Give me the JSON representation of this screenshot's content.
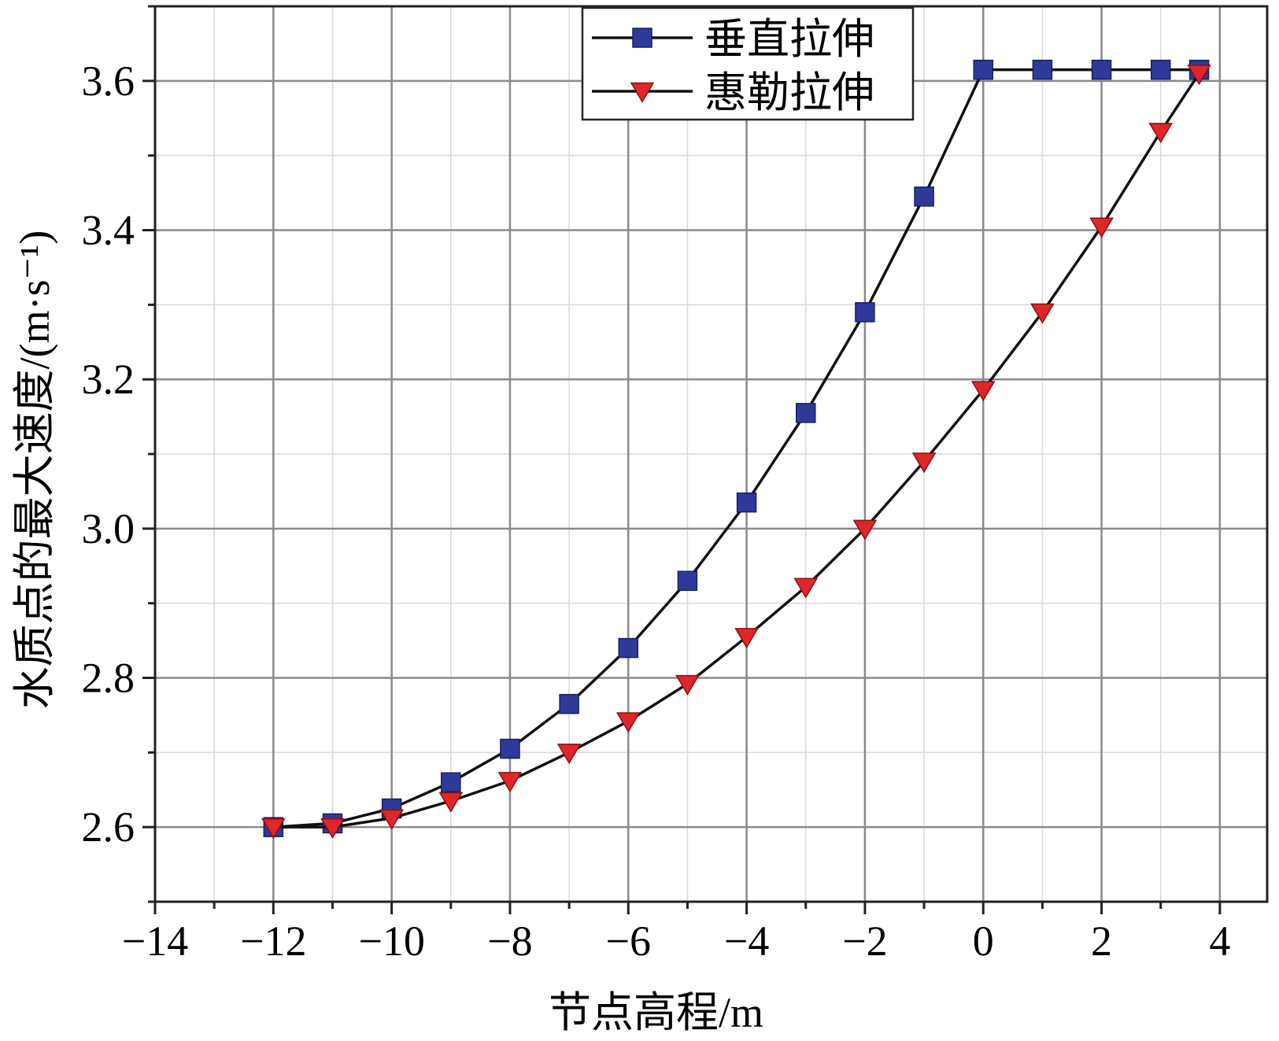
{
  "chart_data": {
    "type": "line",
    "xlabel": "节点高程/m",
    "ylabel": "水质点的最大速度/(m·s⁻¹)",
    "xlim": [
      -14,
      4.8
    ],
    "ylim": [
      2.5,
      3.7
    ],
    "xticks": [
      -14,
      -12,
      -10,
      -8,
      -6,
      -4,
      -2,
      0,
      2,
      4
    ],
    "xtick_labels": [
      "−14",
      "−12",
      "−10",
      "−8",
      "−6",
      "−4",
      "−2",
      "0",
      "2",
      "4"
    ],
    "yticks": [
      2.6,
      2.8,
      3.0,
      3.2,
      3.4,
      3.6
    ],
    "ytick_labels": [
      "2.6",
      "2.8",
      "3.0",
      "3.2",
      "3.4",
      "3.6"
    ],
    "grid": true,
    "legend_position": "top-right",
    "series": [
      {
        "name": "垂直拉伸",
        "marker": "square",
        "color": "#2e3a9a",
        "x": [
          -12,
          -11,
          -10,
          -9,
          -8,
          -7,
          -6,
          -5,
          -4,
          -3,
          -2,
          -1,
          0,
          1,
          2,
          3,
          3.65
        ],
        "y": [
          2.6,
          2.605,
          2.625,
          2.66,
          2.705,
          2.765,
          2.84,
          2.93,
          3.035,
          3.155,
          3.29,
          3.445,
          3.615,
          3.615,
          3.615,
          3.615,
          3.615
        ]
      },
      {
        "name": "惠勒拉伸",
        "marker": "triangle-down",
        "color": "#e0262a",
        "x": [
          -12,
          -11,
          -10,
          -9,
          -8,
          -7,
          -6,
          -5,
          -4,
          -3,
          -2,
          -1,
          0,
          1,
          2,
          3,
          3.65
        ],
        "y": [
          2.6,
          2.6,
          2.612,
          2.635,
          2.662,
          2.7,
          2.742,
          2.792,
          2.855,
          2.922,
          3.0,
          3.09,
          3.186,
          3.29,
          3.405,
          3.532,
          3.61
        ]
      }
    ]
  }
}
